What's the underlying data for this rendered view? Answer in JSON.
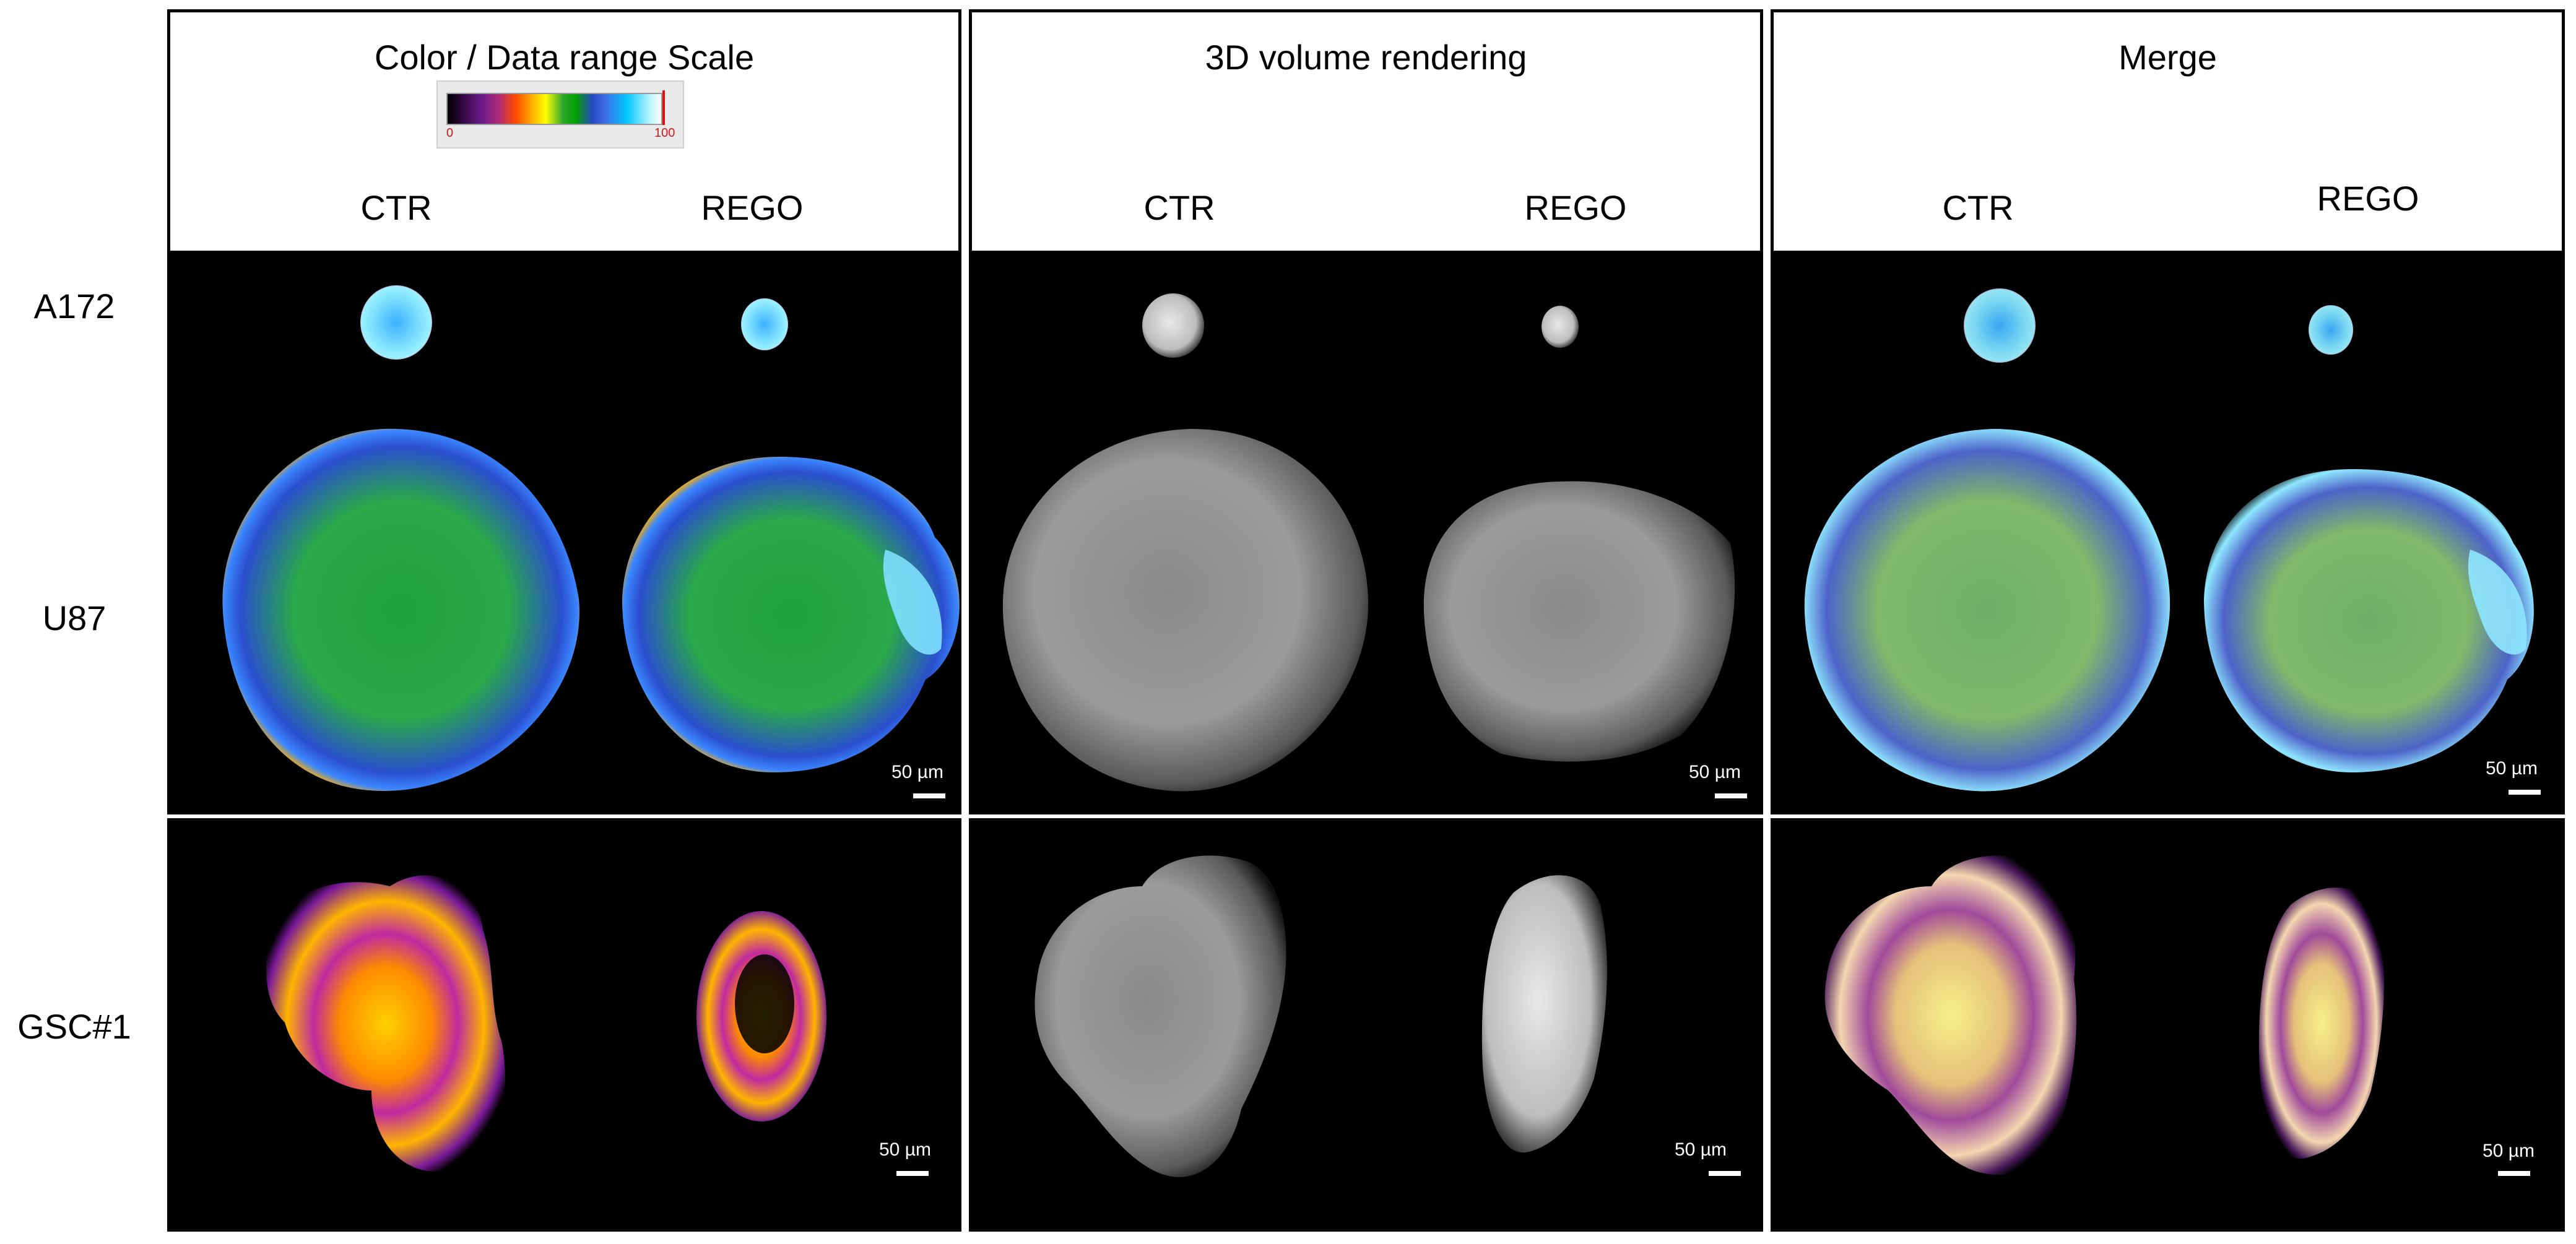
{
  "columns": [
    {
      "title": "Color / Data range Scale",
      "labels": [
        "CTR",
        "REGO"
      ],
      "scale": {
        "min": "0",
        "max": "100"
      }
    },
    {
      "title": "3D volume rendering",
      "labels": [
        "CTR",
        "REGO"
      ]
    },
    {
      "title": "Merge",
      "labels": [
        "CTR",
        "REGO"
      ]
    }
  ],
  "rows": [
    "A172",
    "U87",
    "GSC#1"
  ],
  "scale_bar": "50 µm"
}
